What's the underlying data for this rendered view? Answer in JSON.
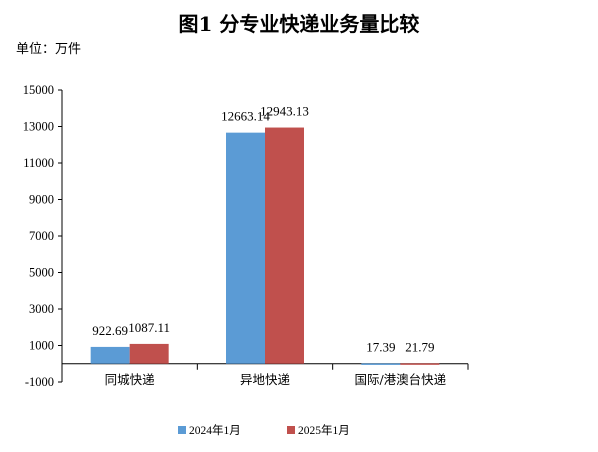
{
  "chart_data": {
    "type": "bar",
    "title": "图1 分专业快递业务量比较",
    "unit_label": "单位：万件",
    "categories": [
      "同城快递",
      "异地快递",
      "国际/港澳台快递"
    ],
    "series": [
      {
        "name": "2024年1月",
        "values": [
          922.69,
          12663.14,
          17.39
        ],
        "labels": [
          "922.69",
          "12663.14",
          "17.39"
        ],
        "color": "#5b9bd5"
      },
      {
        "name": "2025年1月",
        "values": [
          1087.11,
          12943.13,
          21.79
        ],
        "labels": [
          "1087.11",
          "12943.13",
          "21.79"
        ],
        "color": "#c0504d"
      }
    ],
    "ylim": [
      -1000,
      15000
    ],
    "yticks": [
      -1000,
      1000,
      3000,
      5000,
      7000,
      9000,
      11000,
      13000,
      15000
    ],
    "ytick_labels": [
      "-1000",
      "1000",
      "3000",
      "5000",
      "7000",
      "9000",
      "11000",
      "13000",
      "15000"
    ],
    "grid": false,
    "legend_position": "bottom"
  }
}
